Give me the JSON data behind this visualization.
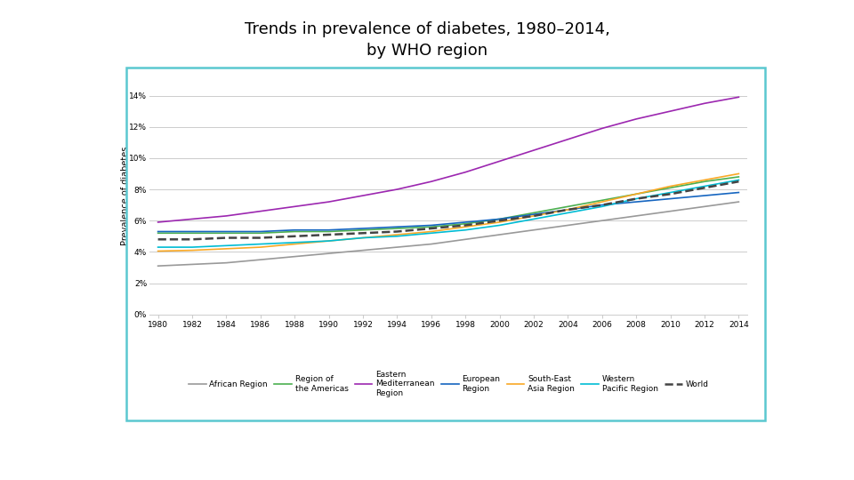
{
  "title_line1": "Trends in prevalence of diabetes, 1980–2014,",
  "title_line2": "by WHO region",
  "ylabel": "Prevalence of diabetes",
  "years": [
    1980,
    1982,
    1984,
    1986,
    1988,
    1990,
    1992,
    1994,
    1996,
    1998,
    2000,
    2002,
    2004,
    2006,
    2008,
    2010,
    2012,
    2014
  ],
  "series": [
    {
      "label": "African Region",
      "color": "#999999",
      "linestyle": "solid",
      "linewidth": 1.2,
      "values": [
        3.1,
        3.2,
        3.3,
        3.5,
        3.7,
        3.9,
        4.1,
        4.3,
        4.5,
        4.8,
        5.1,
        5.4,
        5.7,
        6.0,
        6.3,
        6.6,
        6.9,
        7.2
      ]
    },
    {
      "label": "Region of\nthe Americas",
      "color": "#4CAF50",
      "linestyle": "solid",
      "linewidth": 1.2,
      "values": [
        5.2,
        5.2,
        5.2,
        5.2,
        5.3,
        5.3,
        5.4,
        5.5,
        5.6,
        5.8,
        6.1,
        6.5,
        6.9,
        7.3,
        7.7,
        8.1,
        8.5,
        8.8
      ]
    },
    {
      "label": "Eastern\nMediterranean\nRegion",
      "color": "#9C27B0",
      "linestyle": "solid",
      "linewidth": 1.2,
      "values": [
        5.9,
        6.1,
        6.3,
        6.6,
        6.9,
        7.2,
        7.6,
        8.0,
        8.5,
        9.1,
        9.8,
        10.5,
        11.2,
        11.9,
        12.5,
        13.0,
        13.5,
        13.9
      ]
    },
    {
      "label": "European\nRegion",
      "color": "#1565C0",
      "linestyle": "solid",
      "linewidth": 1.2,
      "values": [
        5.3,
        5.3,
        5.3,
        5.3,
        5.4,
        5.4,
        5.5,
        5.6,
        5.7,
        5.9,
        6.1,
        6.4,
        6.7,
        7.0,
        7.2,
        7.4,
        7.6,
        7.8
      ]
    },
    {
      "label": "South-East\nAsia Region",
      "color": "#F9A825",
      "linestyle": "solid",
      "linewidth": 1.2,
      "values": [
        4.05,
        4.1,
        4.2,
        4.3,
        4.5,
        4.7,
        4.9,
        5.1,
        5.3,
        5.6,
        5.9,
        6.3,
        6.7,
        7.2,
        7.7,
        8.2,
        8.6,
        9.0
      ]
    },
    {
      "label": "Western\nPacific Region",
      "color": "#00BCD4",
      "linestyle": "solid",
      "linewidth": 1.2,
      "values": [
        4.3,
        4.3,
        4.4,
        4.5,
        4.6,
        4.7,
        4.9,
        5.0,
        5.2,
        5.4,
        5.7,
        6.1,
        6.5,
        6.9,
        7.4,
        7.8,
        8.2,
        8.6
      ]
    },
    {
      "label": "World",
      "color": "#444444",
      "linestyle": "dashed",
      "linewidth": 1.8,
      "values": [
        4.8,
        4.8,
        4.9,
        4.9,
        5.0,
        5.1,
        5.2,
        5.3,
        5.5,
        5.7,
        6.0,
        6.3,
        6.7,
        7.0,
        7.4,
        7.7,
        8.1,
        8.5
      ]
    }
  ],
  "yticks": [
    0,
    2,
    4,
    6,
    8,
    10,
    12,
    14
  ],
  "ytick_labels": [
    "0%",
    "2%",
    "4%",
    "6%",
    "8%",
    "10%",
    "12%",
    "14%"
  ],
  "ylim": [
    0,
    15.2
  ],
  "xlim": [
    1979.5,
    2014.5
  ],
  "background_color": "#ffffff",
  "plot_bg_color": "#ffffff",
  "border_color": "#5BC8D0",
  "grid_color": "#cccccc",
  "title_fontsize": 13,
  "axis_label_fontsize": 7,
  "tick_fontsize": 6.5,
  "legend_fontsize": 6.5
}
